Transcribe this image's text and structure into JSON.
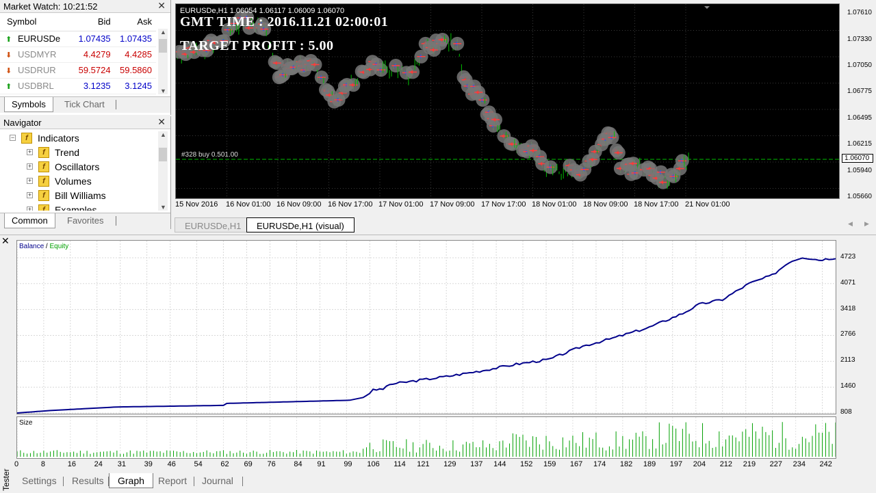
{
  "market_watch": {
    "title": "Market Watch: 10:21:52",
    "columns": [
      "Symbol",
      "Bid",
      "Ask"
    ],
    "rows": [
      {
        "symbol": "EURUSDe",
        "bid": "1.07435",
        "ask": "1.07435",
        "direction": "up"
      },
      {
        "symbol": "USDMYR",
        "bid": "4.4279",
        "ask": "4.4285",
        "direction": "down"
      },
      {
        "symbol": "USDRUR",
        "bid": "59.5724",
        "ask": "59.5860",
        "direction": "down"
      },
      {
        "symbol": "USDBRL",
        "bid": "3.1235",
        "ask": "3.1245",
        "direction": "up"
      }
    ],
    "tabs": [
      "Symbols",
      "Tick Chart"
    ]
  },
  "navigator": {
    "title": "Navigator",
    "items": [
      "Indicators",
      "Trend",
      "Oscillators",
      "Volumes",
      "Bill Williams",
      "Examples"
    ],
    "tabs": [
      "Common",
      "Favorites"
    ]
  },
  "chart": {
    "header": "EURUSDe,H1  1.06054 1.06117 1.06009 1.06070",
    "gmt_time": "GMT TIME : 2016.11.21 02:00:01",
    "target_profit": "TARGET PROFIT : 5.00",
    "order_label": "#328 buy 0.501.00",
    "y_labels": [
      "1.07610",
      "1.07330",
      "1.07050",
      "1.06775",
      "1.06495",
      "1.06215",
      "1.05940",
      "1.05660"
    ],
    "current_price": "1.06070",
    "x_labels": [
      "15 Nov 2016",
      "16 Nov 01:00",
      "16 Nov 09:00",
      "16 Nov 17:00",
      "17 Nov 01:00",
      "17 Nov 09:00",
      "17 Nov 17:00",
      "18 Nov 01:00",
      "18 Nov 09:00",
      "18 Nov 17:00",
      "21 Nov 01:00"
    ],
    "colors": {
      "background": "#000000",
      "candles": "#00c000",
      "bid_line": "#00c000"
    }
  },
  "chart_tabs": [
    "EURUSDe,H1",
    "EURUSDe,H1 (visual)"
  ],
  "tester": {
    "side_label": "Tester",
    "legend_balance": "Balance",
    "legend_sep": " / ",
    "legend_equity": "Equity",
    "size_label": "Size",
    "y_labels": [
      "4723",
      "4071",
      "3418",
      "2766",
      "2113",
      "1460",
      "808"
    ],
    "x_labels": [
      "0",
      "8",
      "16",
      "24",
      "31",
      "39",
      "46",
      "54",
      "62",
      "69",
      "76",
      "84",
      "91",
      "99",
      "106",
      "114",
      "121",
      "129",
      "137",
      "144",
      "152",
      "159",
      "167",
      "174",
      "182",
      "189",
      "197",
      "204",
      "212",
      "219",
      "227",
      "234",
      "242"
    ],
    "tabs": [
      "Settings",
      "Results",
      "Graph",
      "Report",
      "Journal"
    ],
    "colors": {
      "balance": "#00008b",
      "equity": "#00a000",
      "size": "#00a000"
    }
  }
}
